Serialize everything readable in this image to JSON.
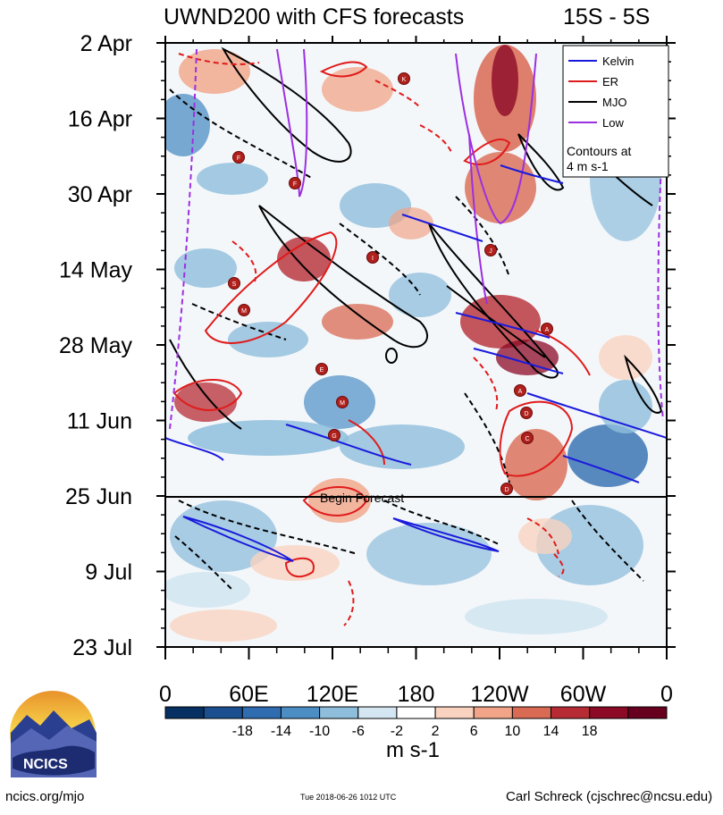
{
  "chart_data": {
    "type": "heatmap",
    "title": "UWND200 with CFS forecasts",
    "region": "15S - 5S",
    "y_tick_labels": [
      "2 Apr",
      "16 Apr",
      "30 Apr",
      "14 May",
      "28 May",
      "11 Jun",
      "25 Jun",
      "9 Jul",
      "23 Jul"
    ],
    "x_tick_labels": [
      "0",
      "60E",
      "120E",
      "180",
      "120W",
      "60W",
      "0"
    ],
    "colorbar": {
      "labels": [
        "-18",
        "-14",
        "-10",
        "-6",
        "-2",
        "2",
        "6",
        "10",
        "14",
        "18"
      ],
      "colors": [
        "#053061",
        "#1b4f8f",
        "#2f6db0",
        "#4c8dc4",
        "#8ebedc",
        "#d3e6f1",
        "#ffffff",
        "#f9d3c0",
        "#f1a487",
        "#d96a53",
        "#b72c34",
        "#8c0a25",
        "#67001f"
      ],
      "units": "m s-1"
    },
    "legend": {
      "placement": "top-right",
      "items": [
        {
          "name": "Kelvin",
          "color": "#1a1adc"
        },
        {
          "name": "ER",
          "color": "#e01b1b"
        },
        {
          "name": "MJO",
          "color": "#000000"
        },
        {
          "name": "Low",
          "color": "#9b30e0"
        }
      ],
      "note_line1": "Contours at",
      "note_line2": "4 m s-1"
    },
    "forecast_label": "Begin Forecast",
    "storm_symbol_letters": [
      "K",
      "F",
      "F",
      "J",
      "S",
      "M",
      "I",
      "A",
      "E",
      "M",
      "G",
      "A",
      "D",
      "C",
      "D"
    ]
  },
  "logo": {
    "text": "NCICS"
  },
  "footer": {
    "site": "ncics.org/mjo",
    "timestamp": "Tue 2018-06-26 1012 UTC",
    "author": "Carl Schreck (cjschrec@ncsu.edu)"
  }
}
